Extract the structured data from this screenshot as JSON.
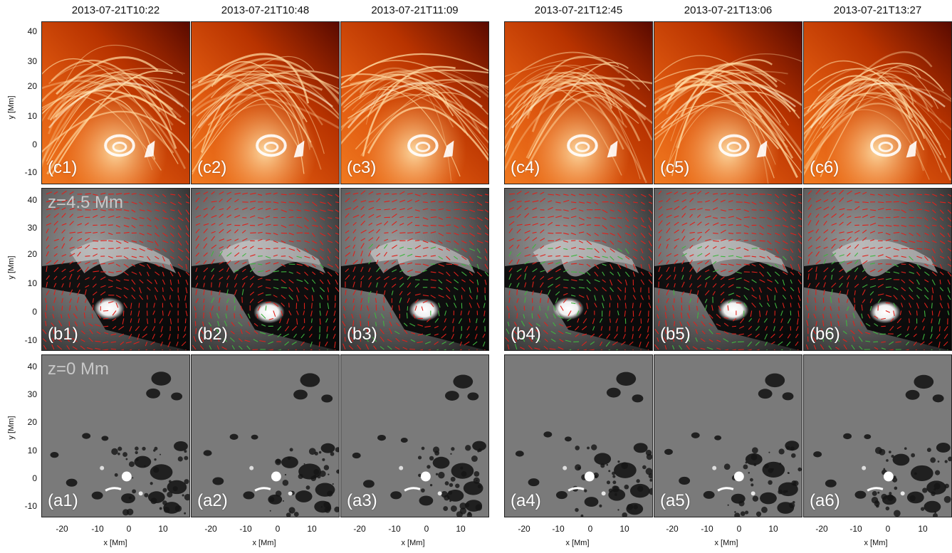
{
  "timestamps": [
    "2013-07-21T10:22",
    "2013-07-21T10:48",
    "2013-07-21T11:09",
    "2013-07-21T12:45",
    "2013-07-21T13:06",
    "2013-07-21T13:27"
  ],
  "rows": [
    {
      "id": "c",
      "labels": [
        "(c1)",
        "(c2)",
        "(c3)",
        "(c4)",
        "(c5)",
        "(c6)"
      ],
      "height_label": ""
    },
    {
      "id": "b",
      "labels": [
        "(b1)",
        "(b2)",
        "(b3)",
        "(b4)",
        "(b5)",
        "(b6)"
      ],
      "height_label": "z=4.5 Mm"
    },
    {
      "id": "a",
      "labels": [
        "(a1)",
        "(a2)",
        "(a3)",
        "(a4)",
        "(a5)",
        "(a6)"
      ],
      "height_label": "z=0 Mm"
    }
  ],
  "axes": {
    "ylabel": "y [Mm]",
    "xlabel": "x [Mm]",
    "yticks": [
      "40",
      "30",
      "20",
      "10",
      "0",
      "-10"
    ],
    "xticks": [
      "-20",
      "-10",
      "0",
      "10"
    ]
  },
  "colors": {
    "arrow_red": "#e0201a",
    "arrow_green": "#3fb53f",
    "sun_dark": "#5a0a00",
    "sun_mid": "#e05a10",
    "sun_bright": "#ffb060"
  }
}
